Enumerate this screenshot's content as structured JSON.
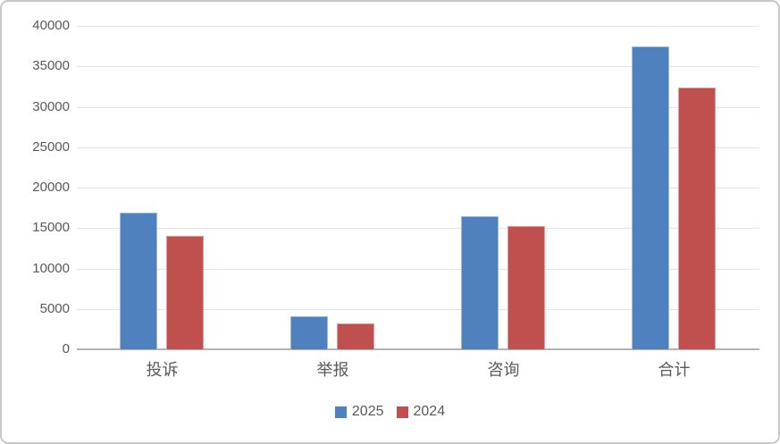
{
  "chart_data": {
    "type": "bar",
    "title": "",
    "categories": [
      "投诉",
      "举报",
      "咨询",
      "合计"
    ],
    "series": [
      {
        "name": "2025",
        "color": "#4E81BD",
        "values": [
          16900,
          4100,
          16500,
          37500
        ]
      },
      {
        "name": "2024",
        "color": "#C0504D",
        "values": [
          14000,
          3200,
          15200,
          32400
        ]
      }
    ],
    "xlabel": "",
    "ylabel": "",
    "ylim": [
      0,
      40000
    ],
    "ytick_step": 5000,
    "ytick_labels": [
      "0",
      "5000",
      "10000",
      "15000",
      "20000",
      "25000",
      "30000",
      "35000",
      "40000"
    ],
    "grid": "horizontal",
    "legend_position": "bottom-center",
    "gridline_color": "#E4E4E4",
    "axis_line_color": "#B3B3B3",
    "text_color": "#595959"
  }
}
